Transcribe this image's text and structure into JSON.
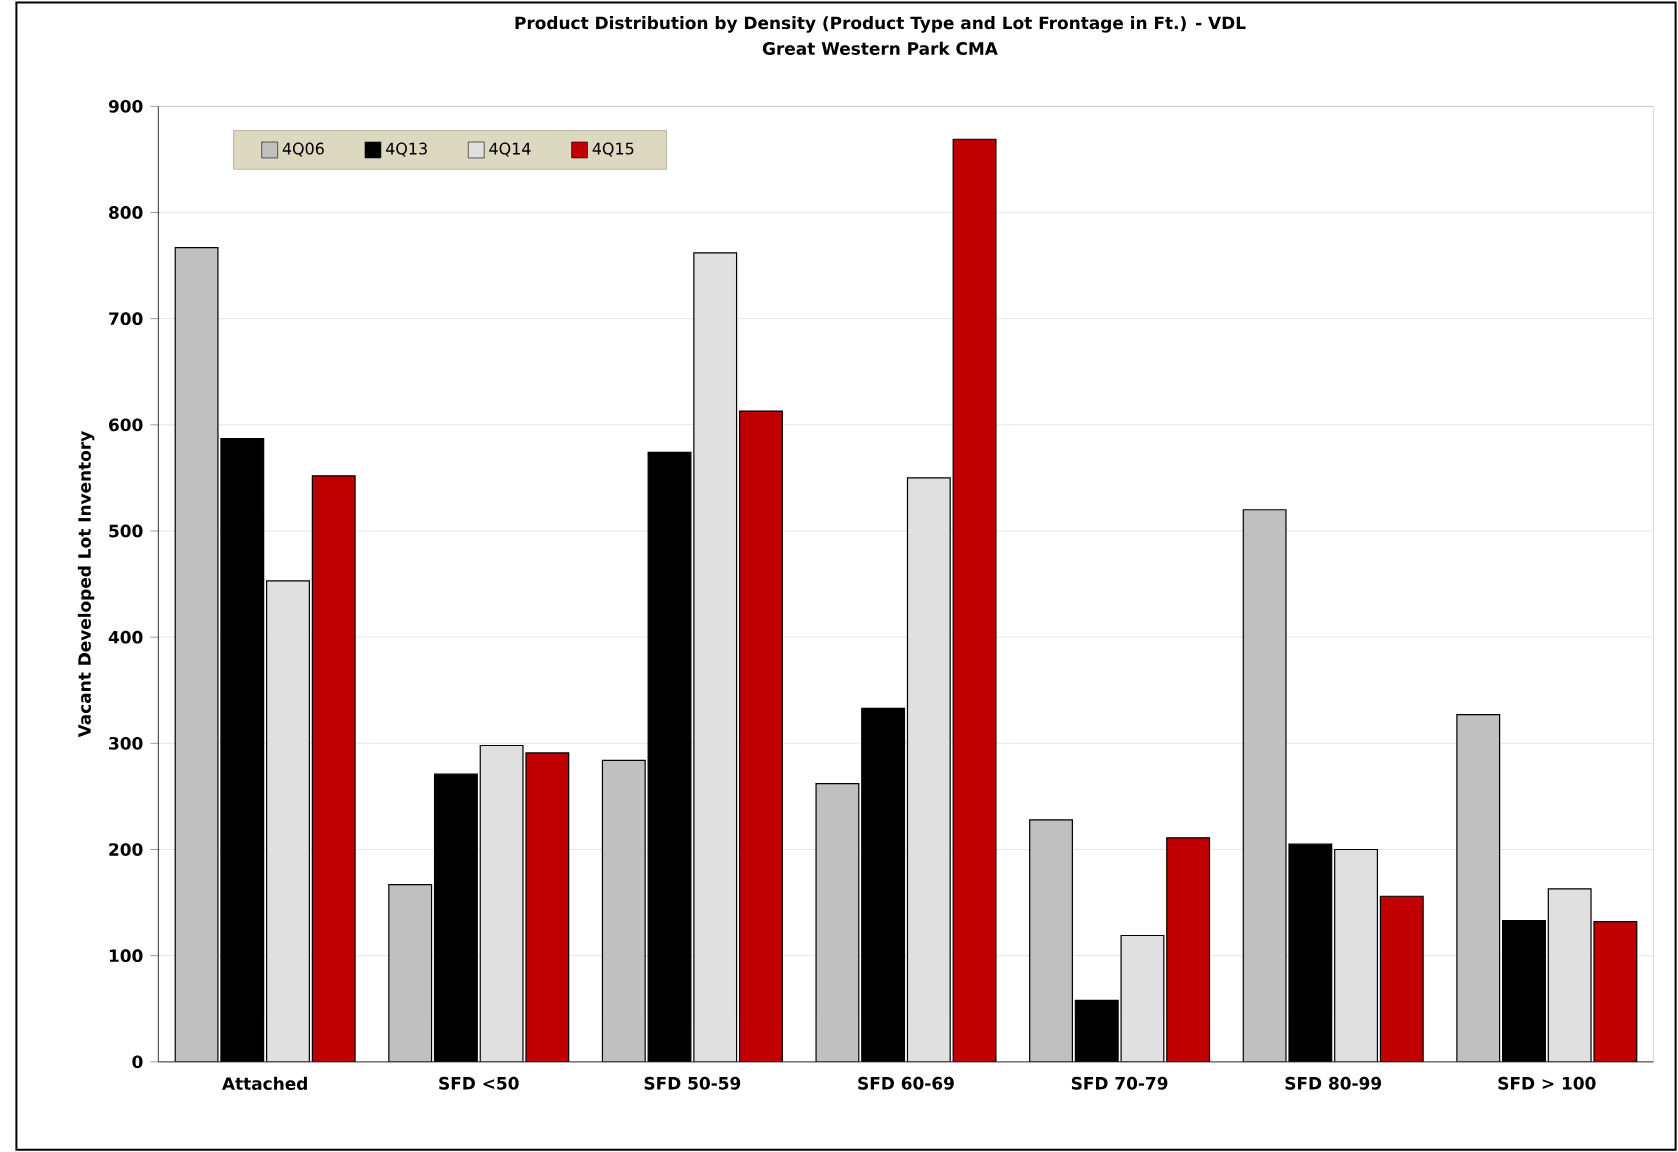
{
  "chart_data": {
    "type": "bar",
    "title": "Product Distribution by Density (Product Type and Lot Frontage in Ft.) - VDL",
    "subtitle": "Great Western Park CMA",
    "ylabel": "Vacant Developed Lot Inventory",
    "categories": [
      "Attached",
      "SFD <50",
      "SFD 50-59",
      "SFD 60-69",
      "SFD 70-79",
      "SFD 80-99",
      "SFD > 100"
    ],
    "series": [
      {
        "name": "4Q06",
        "color": "#c0c0c0",
        "values": [
          767,
          167,
          284,
          262,
          228,
          520,
          327
        ]
      },
      {
        "name": "4Q13",
        "color": "#000000",
        "values": [
          587,
          271,
          574,
          333,
          58,
          205,
          133
        ]
      },
      {
        "name": "4Q14",
        "color": "#e0e0e0",
        "values": [
          453,
          298,
          762,
          550,
          119,
          200,
          163
        ]
      },
      {
        "name": "4Q15",
        "color": "#c00000",
        "values": [
          552,
          291,
          613,
          869,
          211,
          156,
          132
        ]
      }
    ],
    "ylim": [
      0,
      900
    ],
    "yticks": [
      0,
      100,
      200,
      300,
      400,
      500,
      600,
      700,
      800,
      900
    ],
    "grid": "y",
    "legend": "top left"
  }
}
